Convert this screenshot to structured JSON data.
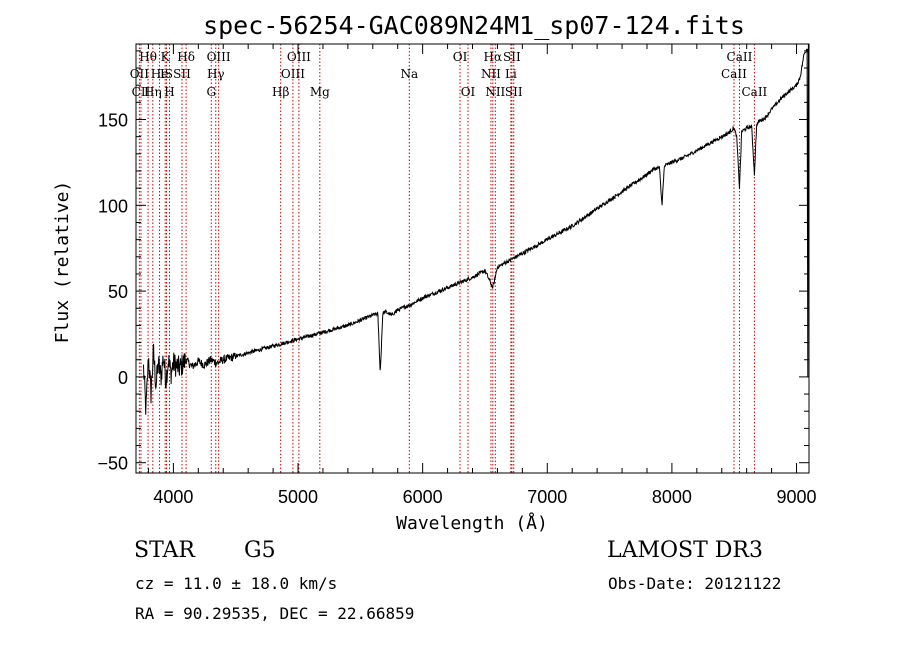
{
  "chart_data": {
    "type": "line",
    "title": "spec-56254-GAC089N24M1_sp07-124.fits",
    "xlabel": "Wavelength (Å)",
    "ylabel": "Flux (relative)",
    "xlim": [
      3700,
      9100
    ],
    "ylim": [
      -56,
      194
    ],
    "xticks": [
      4000,
      5000,
      6000,
      7000,
      8000,
      9000
    ],
    "yticks": [
      -50,
      0,
      50,
      100,
      150
    ],
    "grid": false,
    "line_color": "#000000",
    "marker_color": "#cc0000",
    "spectrum": {
      "name": "flux",
      "x": [
        3760,
        3780,
        3800,
        3820,
        3840,
        3860,
        3880,
        3900,
        3920,
        3940,
        3960,
        3980,
        4000,
        4050,
        4100,
        4150,
        4200,
        4250,
        4300,
        4350,
        4400,
        4450,
        4500,
        4600,
        4700,
        4800,
        4900,
        5000,
        5100,
        5200,
        5300,
        5400,
        5500,
        5600,
        5640,
        5660,
        5680,
        5700,
        5750,
        5800,
        5900,
        6000,
        6100,
        6200,
        6300,
        6400,
        6500,
        6563,
        6600,
        6700,
        6800,
        6900,
        7000,
        7100,
        7200,
        7300,
        7400,
        7500,
        7600,
        7700,
        7800,
        7850,
        7900,
        7920,
        7940,
        8000,
        8100,
        8200,
        8300,
        8400,
        8450,
        8498,
        8520,
        8542,
        8560,
        8600,
        8640,
        8662,
        8680,
        8700,
        8750,
        8800,
        8850,
        8900,
        8950,
        9000,
        9030,
        9060,
        9090
      ],
      "y": [
        5,
        -20,
        12,
        -10,
        15,
        -5,
        8,
        0,
        12,
        -2,
        10,
        2,
        8,
        5,
        10,
        6,
        9,
        7,
        10,
        8,
        10,
        11,
        12,
        14,
        16,
        18,
        20,
        22,
        24,
        26,
        28,
        30,
        33,
        36,
        37,
        2,
        37,
        38,
        36,
        39,
        42,
        46,
        49,
        52,
        55,
        58,
        62,
        52,
        64,
        68,
        72,
        76,
        80,
        84,
        88,
        93,
        98,
        103,
        108,
        113,
        118,
        121,
        122,
        100,
        123,
        125,
        128,
        132,
        136,
        140,
        142,
        145,
        140,
        110,
        143,
        145,
        146,
        118,
        147,
        149,
        151,
        156,
        160,
        164,
        167,
        170,
        175,
        188,
        192
      ]
    },
    "line_markers": [
      {
        "label": "Hθ",
        "x": 3797,
        "row": 0
      },
      {
        "label": "OII",
        "x": 3727,
        "row": 1
      },
      {
        "label": "CII",
        "x": 3740,
        "row": 2
      },
      {
        "label": "Hη",
        "x": 3835,
        "row": 2
      },
      {
        "label": "He",
        "x": 3889,
        "row": 1
      },
      {
        "label": "K",
        "x": 3934,
        "row": 0
      },
      {
        "label": "IS",
        "x": 3945,
        "row": 1
      },
      {
        "label": "H",
        "x": 3969,
        "row": 2
      },
      {
        "label": "Hδ",
        "x": 4102,
        "row": 0
      },
      {
        "label": "SII",
        "x": 4069,
        "row": 1
      },
      {
        "label": "OIII",
        "x": 4363,
        "row": 0
      },
      {
        "label": "Hγ",
        "x": 4340,
        "row": 1
      },
      {
        "label": "G",
        "x": 4304,
        "row": 2
      },
      {
        "label": "OIII",
        "x": 5007,
        "row": 0
      },
      {
        "label": "OIII",
        "x": 4959,
        "row": 1
      },
      {
        "label": "Hβ",
        "x": 4861,
        "row": 2
      },
      {
        "label": "Mg",
        "x": 5175,
        "row": 2
      },
      {
        "label": "Na",
        "x": 5893,
        "row": 1
      },
      {
        "label": "OI",
        "x": 6300,
        "row": 0
      },
      {
        "label": "OI",
        "x": 6364,
        "row": 2
      },
      {
        "label": "Hα",
        "x": 6563,
        "row": 0
      },
      {
        "label": "SII",
        "x": 6716,
        "row": 0
      },
      {
        "label": "NII",
        "x": 6548,
        "row": 1
      },
      {
        "label": "Li",
        "x": 6708,
        "row": 1
      },
      {
        "label": "NII",
        "x": 6583,
        "row": 2
      },
      {
        "label": "SII",
        "x": 6731,
        "row": 2
      },
      {
        "label": "CaII",
        "x": 8542,
        "row": 0
      },
      {
        "label": "CaII",
        "x": 8498,
        "row": 1
      },
      {
        "label": "CaII",
        "x": 8662,
        "row": 2
      }
    ]
  },
  "info": {
    "object_class": "STAR",
    "subclass": "G5",
    "survey": "LAMOST DR3",
    "cz": "cz = 11.0 ± 18.0 km/s",
    "obs_date": "Obs-Date: 20121122",
    "coords": "RA =  90.29535, DEC =  22.66859"
  }
}
